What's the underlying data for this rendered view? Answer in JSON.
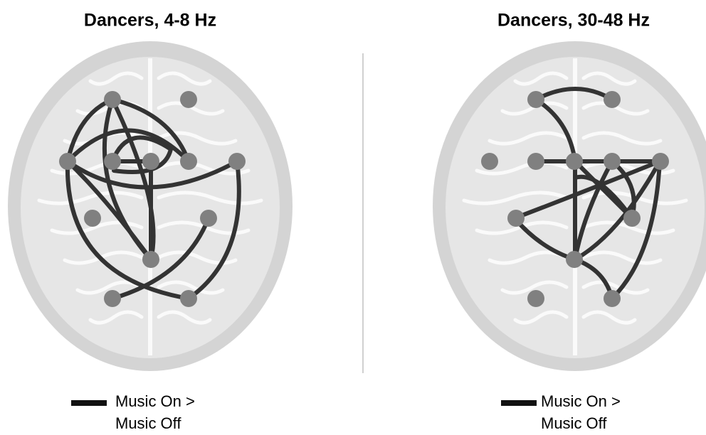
{
  "panels": [
    {
      "title": "Dancers, 4-8 Hz",
      "legend": [
        "Music On >",
        "Music Off"
      ]
    },
    {
      "title": "Dancers, 30-48 Hz",
      "legend": [
        "Music On >",
        "Music Off"
      ]
    }
  ]
}
